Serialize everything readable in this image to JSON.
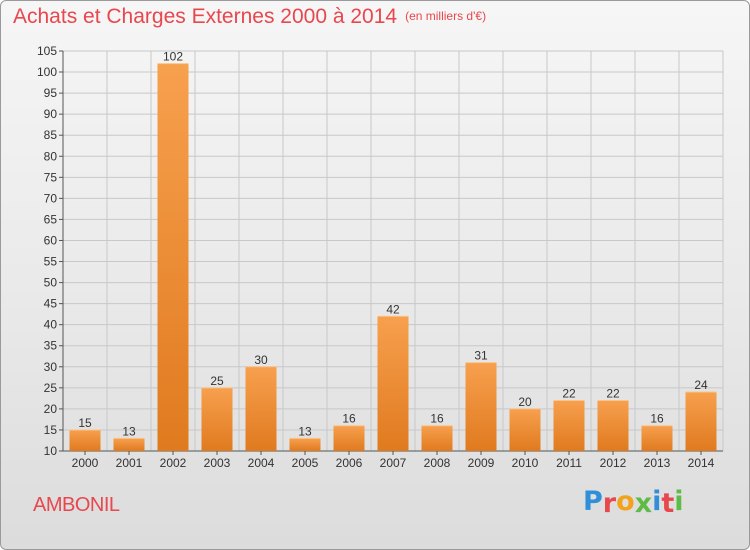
{
  "header": {
    "title": "Achats et Charges Externes 2000 à 2014",
    "subtitle": "(en milliers d'€)"
  },
  "footer": {
    "commune": "AMBONIL",
    "logo_text": "Proxiti",
    "logo_colors": [
      "#2f8fd8",
      "#e8474e",
      "#f2a21d",
      "#5dbb46",
      "#2f8fd8",
      "#e8474e",
      "#5dbb46"
    ]
  },
  "colors": {
    "title": "#e8474e",
    "bar_light": "#f7a04e",
    "bar_dark": "#e07a1f",
    "grid": "#c8c8c8"
  },
  "chart_data": {
    "type": "bar",
    "title": "Achats et Charges Externes 2000 à 2014",
    "subtitle": "(en milliers d'€)",
    "categories": [
      "2000",
      "2001",
      "2002",
      "2003",
      "2004",
      "2005",
      "2006",
      "2007",
      "2008",
      "2009",
      "2010",
      "2011",
      "2012",
      "2013",
      "2014"
    ],
    "values": [
      15,
      13,
      102,
      25,
      30,
      13,
      16,
      42,
      16,
      31,
      20,
      22,
      22,
      16,
      24
    ],
    "ylim": [
      10,
      105
    ],
    "yticks": [
      10,
      15,
      20,
      25,
      30,
      35,
      40,
      45,
      50,
      55,
      60,
      65,
      70,
      75,
      80,
      85,
      90,
      95,
      100,
      105
    ],
    "grid": true,
    "data_labels": true
  }
}
